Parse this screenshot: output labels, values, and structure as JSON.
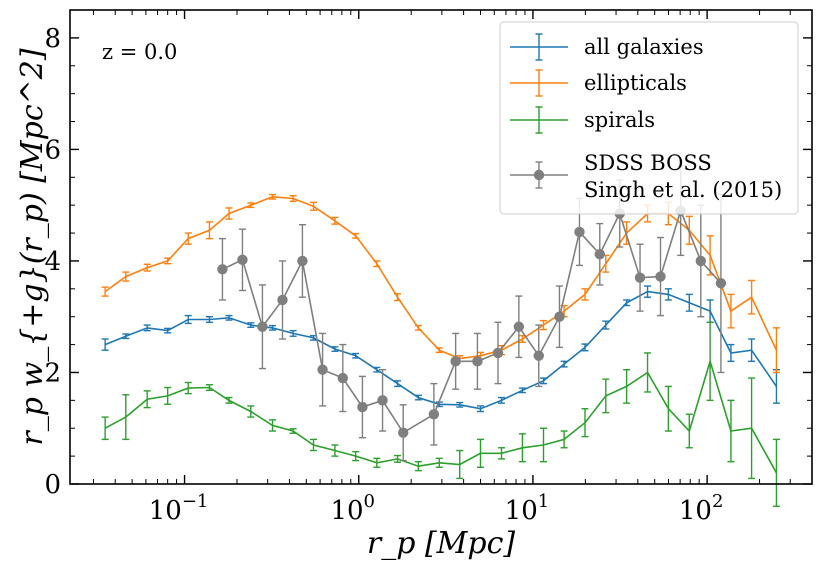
{
  "chart_data": {
    "type": "line",
    "title": "",
    "annotation": "z = 0.0",
    "xlabel": "r_p [Mpc]",
    "ylabel": "r_p w_{+g}(r_p) [Mpc^2]",
    "xscale": "log",
    "xlim": [
      0.022,
      400
    ],
    "ylim": [
      0,
      8.5
    ],
    "yticks": [
      0,
      2,
      4,
      6,
      8
    ],
    "xticks": [
      0.1,
      1,
      10,
      100
    ],
    "xtick_labels": [
      {
        "base": "10",
        "exp": "−1"
      },
      {
        "base": "10",
        "exp": "0"
      },
      {
        "base": "10",
        "exp": "1"
      },
      {
        "base": "10",
        "exp": "2"
      }
    ],
    "legend_position": "top-right",
    "series": [
      {
        "name": "all galaxies",
        "color": "#1f77b4",
        "marker": "none",
        "x": [
          0.035,
          0.046,
          0.061,
          0.08,
          0.105,
          0.139,
          0.18,
          0.24,
          0.32,
          0.42,
          0.55,
          0.73,
          0.96,
          1.27,
          1.67,
          2.2,
          2.9,
          3.8,
          5.0,
          6.6,
          8.7,
          11.5,
          15.1,
          19.9,
          26.2,
          34.5,
          45.5,
          59.9,
          79,
          104,
          137,
          180,
          250
        ],
        "y": [
          2.5,
          2.65,
          2.8,
          2.75,
          2.95,
          2.95,
          2.98,
          2.85,
          2.8,
          2.7,
          2.62,
          2.42,
          2.3,
          2.05,
          1.8,
          1.55,
          1.43,
          1.42,
          1.35,
          1.5,
          1.68,
          1.85,
          2.15,
          2.45,
          2.85,
          3.25,
          3.45,
          3.4,
          3.25,
          3.1,
          2.35,
          2.4,
          1.75
        ],
        "yerr": [
          0.1,
          0.04,
          0.05,
          0.04,
          0.07,
          0.05,
          0.04,
          0.04,
          0.04,
          0.05,
          0.04,
          0.04,
          0.04,
          0.04,
          0.05,
          0.04,
          0.04,
          0.04,
          0.05,
          0.05,
          0.04,
          0.05,
          0.05,
          0.06,
          0.07,
          0.05,
          0.1,
          0.1,
          0.15,
          0.2,
          0.15,
          0.2,
          0.3
        ]
      },
      {
        "name": "ellipticals",
        "color": "#ff7f0e",
        "marker": "none",
        "x": [
          0.035,
          0.046,
          0.061,
          0.08,
          0.105,
          0.139,
          0.18,
          0.24,
          0.32,
          0.42,
          0.55,
          0.73,
          0.96,
          1.27,
          1.67,
          2.2,
          2.9,
          3.8,
          5.0,
          6.6,
          8.7,
          11.5,
          15.1,
          19.9,
          26.2,
          34.5,
          45.5,
          59.9,
          79,
          104,
          137,
          180,
          250
        ],
        "y": [
          3.45,
          3.72,
          3.88,
          4.0,
          4.4,
          4.55,
          4.85,
          5.0,
          5.15,
          5.12,
          4.98,
          4.72,
          4.45,
          3.95,
          3.35,
          2.8,
          2.4,
          2.25,
          2.3,
          2.4,
          2.6,
          2.85,
          3.1,
          3.4,
          3.95,
          4.5,
          4.85,
          4.85,
          4.55,
          4.1,
          3.1,
          3.35,
          2.4
        ],
        "yerr": [
          0.08,
          0.08,
          0.06,
          0.05,
          0.1,
          0.15,
          0.1,
          0.04,
          0.04,
          0.05,
          0.07,
          0.06,
          0.04,
          0.05,
          0.06,
          0.04,
          0.04,
          0.05,
          0.06,
          0.08,
          0.06,
          0.08,
          0.1,
          0.1,
          0.15,
          0.2,
          0.15,
          0.2,
          0.25,
          0.35,
          0.3,
          0.3,
          0.4
        ]
      },
      {
        "name": "spirals",
        "color": "#2ca02c",
        "marker": "none",
        "x": [
          0.035,
          0.046,
          0.061,
          0.08,
          0.105,
          0.139,
          0.18,
          0.24,
          0.32,
          0.42,
          0.55,
          0.73,
          0.96,
          1.27,
          1.67,
          2.2,
          2.9,
          3.8,
          5.0,
          6.6,
          8.7,
          11.5,
          15.1,
          19.9,
          26.2,
          34.5,
          45.5,
          59.9,
          79,
          104,
          137,
          180,
          250
        ],
        "y": [
          1.0,
          1.2,
          1.52,
          1.58,
          1.72,
          1.73,
          1.5,
          1.3,
          1.05,
          0.95,
          0.7,
          0.6,
          0.5,
          0.38,
          0.45,
          0.32,
          0.38,
          0.35,
          0.55,
          0.55,
          0.65,
          0.7,
          0.8,
          1.1,
          1.58,
          1.75,
          2.0,
          1.35,
          0.95,
          2.2,
          0.95,
          1.0,
          0.2
        ],
        "yerr": [
          0.2,
          0.4,
          0.15,
          0.15,
          0.1,
          0.05,
          0.05,
          0.1,
          0.1,
          0.04,
          0.1,
          0.1,
          0.08,
          0.08,
          0.06,
          0.08,
          0.08,
          0.25,
          0.25,
          0.1,
          0.25,
          0.3,
          0.15,
          0.25,
          0.3,
          0.3,
          0.35,
          0.4,
          0.3,
          0.7,
          0.55,
          0.9,
          0.6
        ]
      },
      {
        "name": "SDSS BOSS\nSingh et al. (2015)",
        "legend_lines": [
          "SDSS BOSS",
          "Singh et al. (2015)"
        ],
        "color": "#7f7f7f",
        "marker": "circle",
        "x": [
          0.165,
          0.215,
          0.28,
          0.365,
          0.475,
          0.62,
          0.81,
          1.05,
          1.37,
          1.8,
          2.7,
          3.6,
          4.8,
          6.3,
          8.3,
          10.8,
          14.2,
          18.5,
          24.2,
          31.5,
          41.2,
          54,
          70.5,
          92,
          120
        ],
        "y": [
          3.85,
          4.02,
          2.82,
          3.3,
          4.0,
          2.05,
          1.9,
          1.38,
          1.5,
          0.92,
          1.25,
          2.2,
          2.2,
          2.35,
          2.82,
          2.3,
          3.0,
          4.52,
          4.12,
          4.85,
          3.7,
          3.72,
          4.9,
          4.0,
          3.6
        ],
        "yerr": [
          0.55,
          0.55,
          0.75,
          0.7,
          0.65,
          0.65,
          0.6,
          0.55,
          0.55,
          0.5,
          0.55,
          0.5,
          0.5,
          0.55,
          0.55,
          0.55,
          0.55,
          0.6,
          0.55,
          0.6,
          0.6,
          0.7,
          0.8,
          1.0,
          1.6
        ]
      }
    ]
  }
}
